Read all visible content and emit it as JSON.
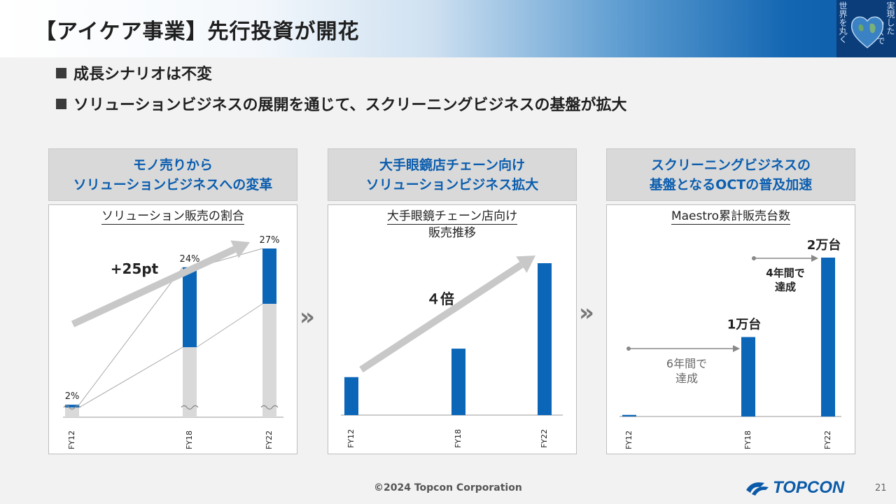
{
  "title": "【アイケア事業】先行投資が開花",
  "header_deco": {
    "col1": "実現した",
    "col2": "世界を丸く",
    "col3": "ＤＸで"
  },
  "bullets": [
    "成長シナリオは不変",
    "ソリューションビジネスの展開を通じて、スクリーニングビジネスの基盤が拡大"
  ],
  "panels": [
    {
      "head": [
        "モノ売りから",
        "ソリューションビジネスへの変革"
      ],
      "subtitle": [
        "ソリューション販売の割合"
      ],
      "annotation": "+25pt"
    },
    {
      "head": [
        "大手眼鏡店チェーン向け",
        "ソリューションビジネス拡大"
      ],
      "subtitle": [
        "大手眼鏡チェーン店向け",
        "販売推移"
      ],
      "annotation": "４倍"
    },
    {
      "head": [
        "スクリーニングビジネスの",
        "基盤となるOCTの普及加速"
      ],
      "subtitle": [
        "Maestro累計販売台数"
      ],
      "annotation_a": [
        "6年間で",
        "達成"
      ],
      "annotation_b": [
        "4年間で",
        "達成"
      ]
    }
  ],
  "chart_data": [
    {
      "type": "bar",
      "title": "ソリューション販売の割合",
      "categories": [
        "FY12",
        "FY18",
        "FY22"
      ],
      "series": [
        {
          "name": "ソリューション販売の割合",
          "values": [
            2,
            24,
            27
          ]
        }
      ],
      "data_labels": [
        "2%",
        "24%",
        "27%"
      ],
      "unit": "%",
      "ylim": [
        0,
        27
      ],
      "axis_break": true
    },
    {
      "type": "bar",
      "title": "大手眼鏡チェーン店向け販売推移",
      "categories": [
        "FY12",
        "FY18",
        "FY22"
      ],
      "series": [
        {
          "name": "販売推移",
          "values": [
            1,
            1.75,
            4
          ]
        }
      ],
      "data_labels": [],
      "ylim": [
        0,
        4
      ]
    },
    {
      "type": "bar",
      "title": "Maestro累計販売台数",
      "categories": [
        "FY12",
        "FY18",
        "FY22"
      ],
      "series": [
        {
          "name": "累計販売台数",
          "values": [
            200,
            10000,
            20000
          ]
        }
      ],
      "data_labels": [
        "",
        "1万台",
        "2万台"
      ],
      "ylim": [
        0,
        20000
      ]
    }
  ],
  "footer": "©2024 Topcon Corporation",
  "page_number": "21",
  "logo_text": "TOPCON",
  "colors": {
    "accent": "#0b66b8",
    "bar_gray": "#d9d9d9",
    "head_text": "#0b5dae",
    "arrow": "#c8c8c8"
  }
}
